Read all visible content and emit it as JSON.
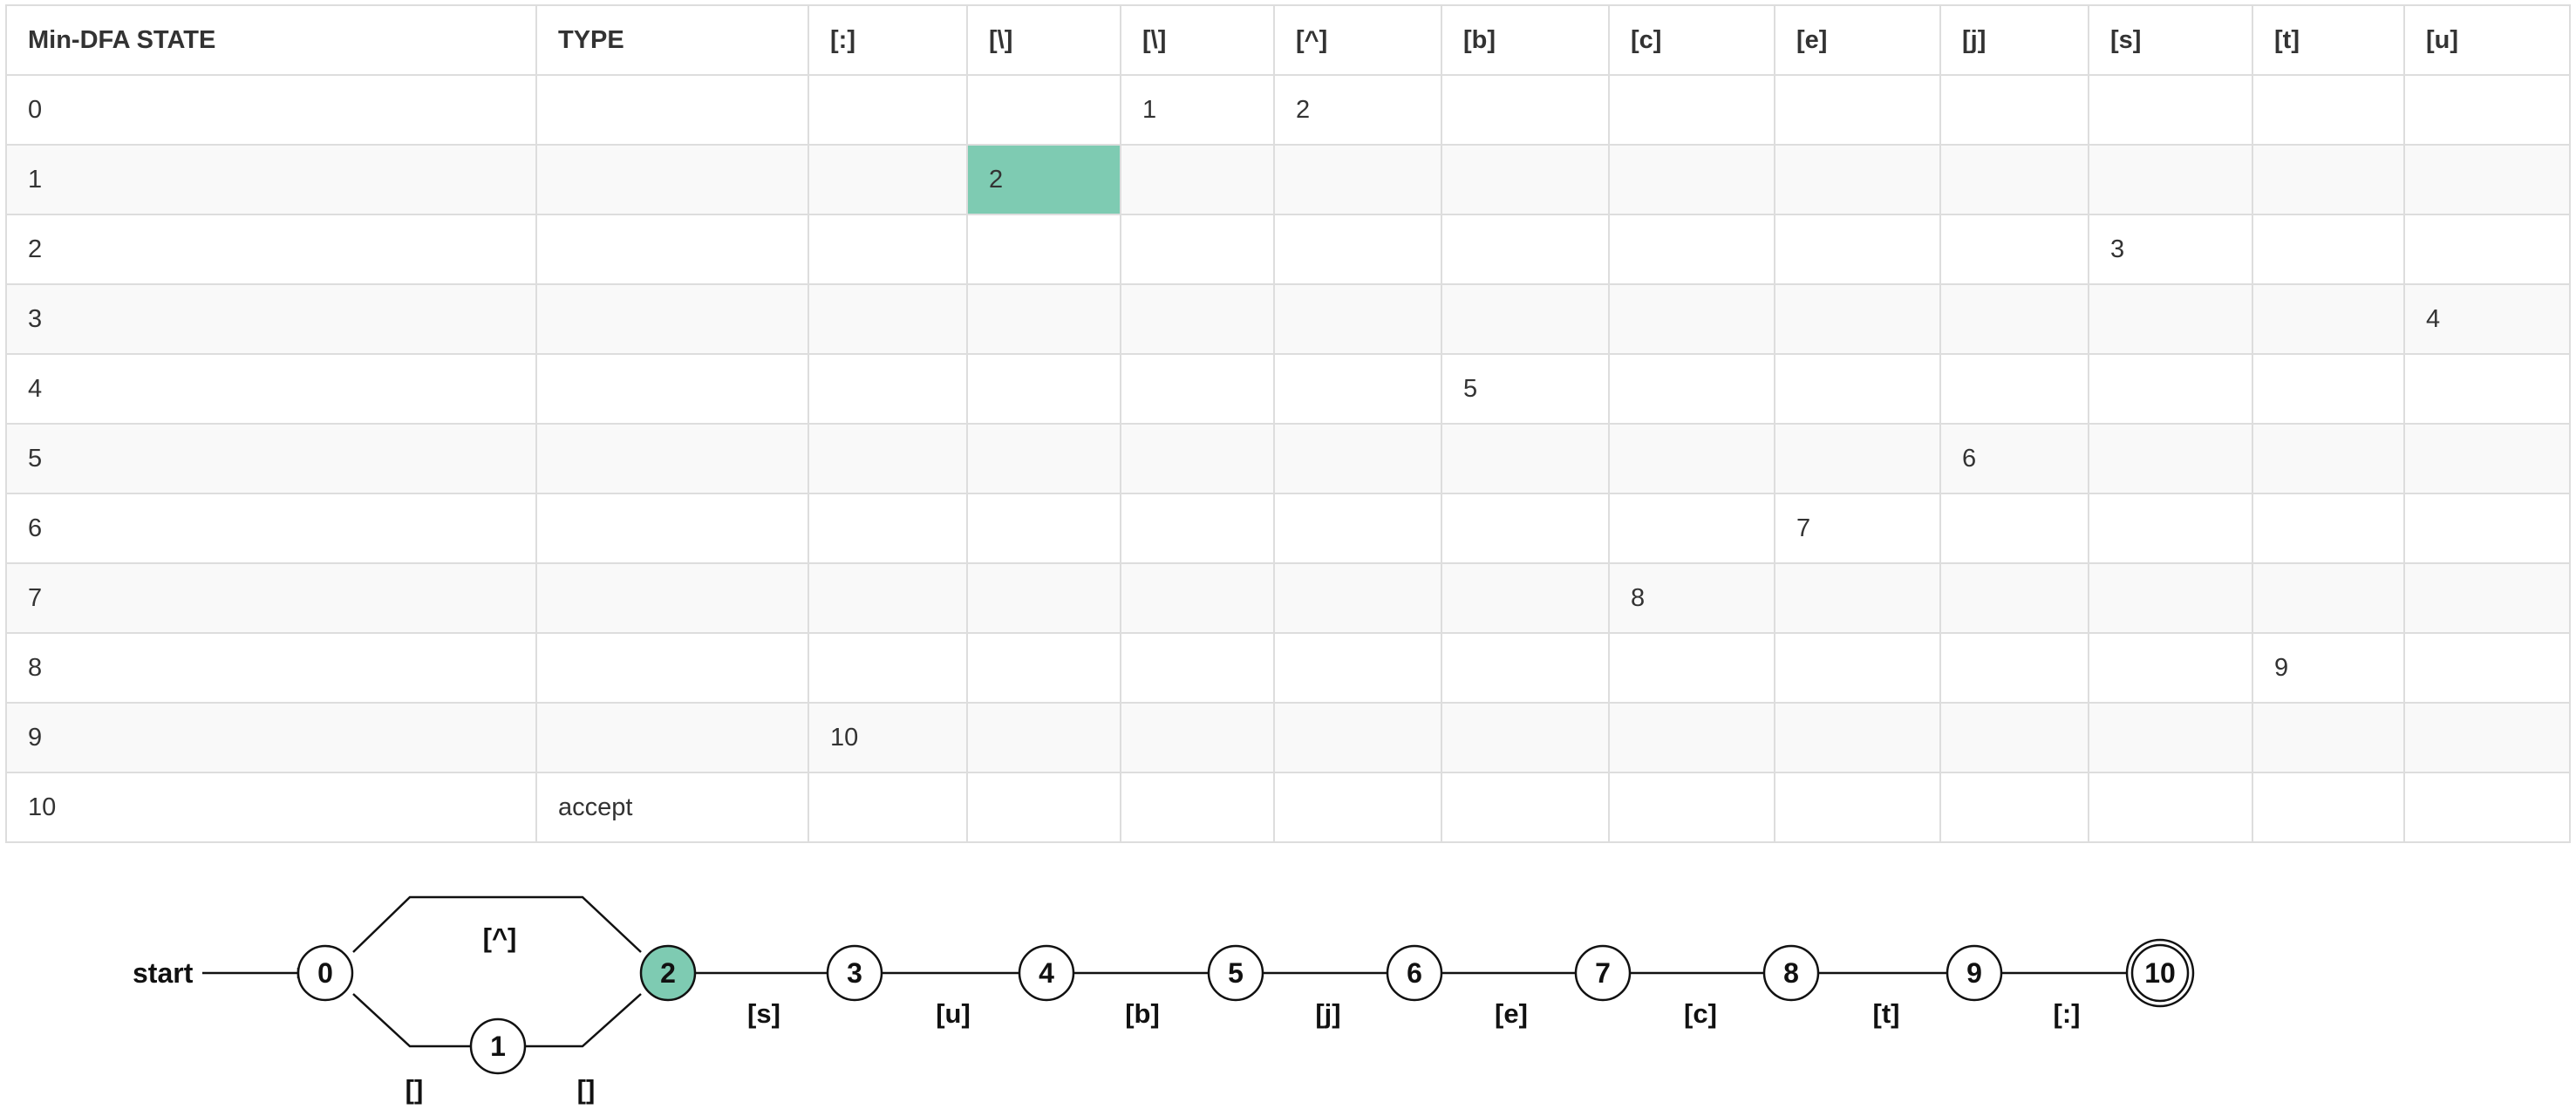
{
  "table": {
    "headers": [
      "Min-DFA STATE",
      "TYPE",
      "[:]",
      "[\\]",
      "[\\]",
      "[^]",
      "[b]",
      "[c]",
      "[e]",
      "[j]",
      "[s]",
      "[t]",
      "[u]"
    ],
    "rows": [
      [
        "0",
        "",
        "",
        "",
        "1",
        "2",
        "",
        "",
        "",
        "",
        "",
        "",
        ""
      ],
      [
        "1",
        "",
        "",
        "2",
        "",
        "",
        "",
        "",
        "",
        "",
        "",
        "",
        ""
      ],
      [
        "2",
        "",
        "",
        "",
        "",
        "",
        "",
        "",
        "",
        "",
        "3",
        "",
        ""
      ],
      [
        "3",
        "",
        "",
        "",
        "",
        "",
        "",
        "",
        "",
        "",
        "",
        "",
        "4"
      ],
      [
        "4",
        "",
        "",
        "",
        "",
        "",
        "5",
        "",
        "",
        "",
        "",
        "",
        ""
      ],
      [
        "5",
        "",
        "",
        "",
        "",
        "",
        "",
        "",
        "",
        "6",
        "",
        "",
        ""
      ],
      [
        "6",
        "",
        "",
        "",
        "",
        "",
        "",
        "",
        "7",
        "",
        "",
        "",
        ""
      ],
      [
        "7",
        "",
        "",
        "",
        "",
        "",
        "",
        "8",
        "",
        "",
        "",
        "",
        ""
      ],
      [
        "8",
        "",
        "",
        "",
        "",
        "",
        "",
        "",
        "",
        "",
        "",
        "9",
        ""
      ],
      [
        "9",
        "",
        "10",
        "",
        "",
        "",
        "",
        "",
        "",
        "",
        "",
        "",
        ""
      ],
      [
        "10",
        "accept",
        "",
        "",
        "",
        "",
        "",
        "",
        "",
        "",
        "",
        "",
        ""
      ]
    ],
    "highlighted_cell": {
      "row": 1,
      "col": 3
    },
    "highlight_color": "#7ecbb2"
  },
  "diagram": {
    "start_label": "start",
    "highlight_color": "#7ecbb2",
    "states": [
      {
        "id": "0",
        "accept": false,
        "highlight": false
      },
      {
        "id": "1",
        "accept": false,
        "highlight": false
      },
      {
        "id": "2",
        "accept": false,
        "highlight": true
      },
      {
        "id": "3",
        "accept": false,
        "highlight": false
      },
      {
        "id": "4",
        "accept": false,
        "highlight": false
      },
      {
        "id": "5",
        "accept": false,
        "highlight": false
      },
      {
        "id": "6",
        "accept": false,
        "highlight": false
      },
      {
        "id": "7",
        "accept": false,
        "highlight": false
      },
      {
        "id": "8",
        "accept": false,
        "highlight": false
      },
      {
        "id": "9",
        "accept": false,
        "highlight": false
      },
      {
        "id": "10",
        "accept": true,
        "highlight": false
      }
    ],
    "edges": [
      {
        "from": "0",
        "to": "2",
        "label": "[^]"
      },
      {
        "from": "0",
        "to": "1",
        "label": "[]"
      },
      {
        "from": "1",
        "to": "2",
        "label": "[]"
      },
      {
        "from": "2",
        "to": "3",
        "label": "[s]"
      },
      {
        "from": "3",
        "to": "4",
        "label": "[u]"
      },
      {
        "from": "4",
        "to": "5",
        "label": "[b]"
      },
      {
        "from": "5",
        "to": "6",
        "label": "[j]"
      },
      {
        "from": "6",
        "to": "7",
        "label": "[e]"
      },
      {
        "from": "7",
        "to": "8",
        "label": "[c]"
      },
      {
        "from": "8",
        "to": "9",
        "label": "[t]"
      },
      {
        "from": "9",
        "to": "10",
        "label": "[:]"
      }
    ]
  }
}
